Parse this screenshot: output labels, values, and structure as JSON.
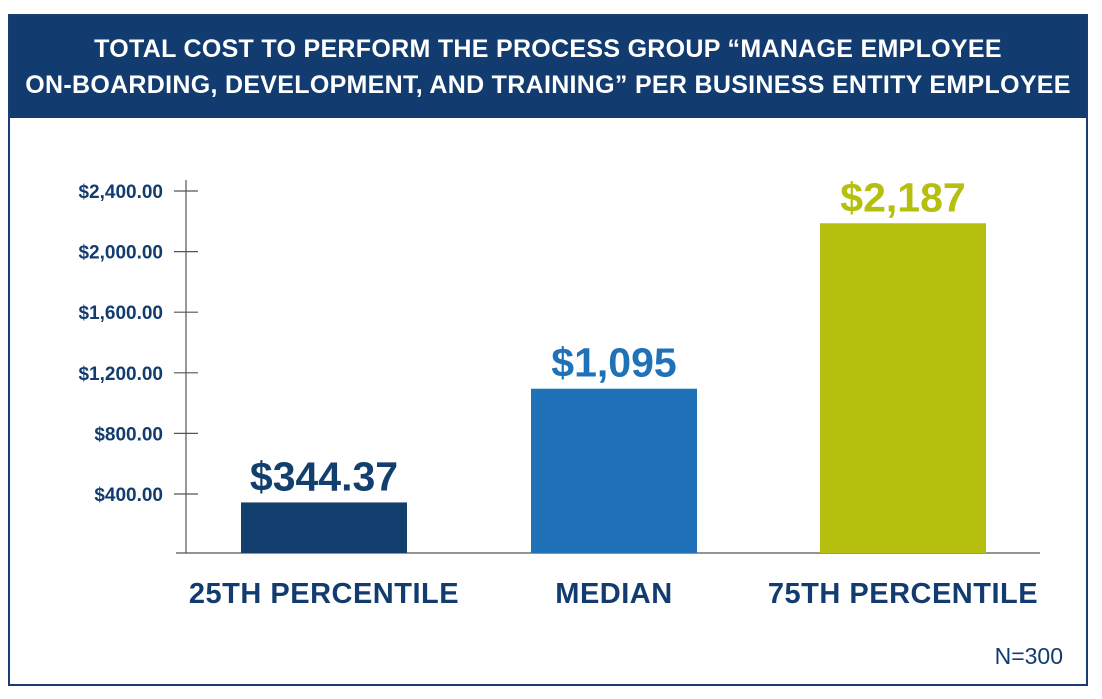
{
  "title_lines": [
    "TOTAL COST TO PERFORM THE PROCESS GROUP “MANAGE EMPLOYEE",
    "ON-BOARDING, DEVELOPMENT, AND TRAINING” PER BUSINESS ENTITY EMPLOYEE"
  ],
  "note": "N=300",
  "colors": {
    "header_bg": "#123c70",
    "text": "#123c70",
    "bar_25th": "#133f6e",
    "bar_median": "#1f72b8",
    "bar_75th": "#b5bf0d",
    "axis": "#555555"
  },
  "chart_data": {
    "type": "bar",
    "title": "TOTAL COST TO PERFORM THE PROCESS GROUP “MANAGE EMPLOYEE ON-BOARDING, DEVELOPMENT, AND TRAINING” PER BUSINESS ENTITY EMPLOYEE",
    "categories": [
      "25TH PERCENTILE",
      "MEDIAN",
      "75TH PERCENTILE"
    ],
    "values": [
      344.37,
      1095,
      2187
    ],
    "data_labels": [
      "$344.37",
      "$1,095",
      "$2,187"
    ],
    "bar_colors": [
      "#133f6e",
      "#1f72b8",
      "#b5bf0d"
    ],
    "label_colors": [
      "#133f6e",
      "#1f72b8",
      "#b5bf0d"
    ],
    "yticks": [
      400,
      800,
      1200,
      1600,
      2000,
      2400
    ],
    "ytick_labels": [
      "$400.00",
      "$800.00",
      "$1,200.00",
      "$1,600.00",
      "$2,000.00",
      "$2,400.00"
    ],
    "ylim": [
      0,
      2400
    ],
    "xlabel": "",
    "ylabel": "",
    "grid": false,
    "legend": "none"
  }
}
